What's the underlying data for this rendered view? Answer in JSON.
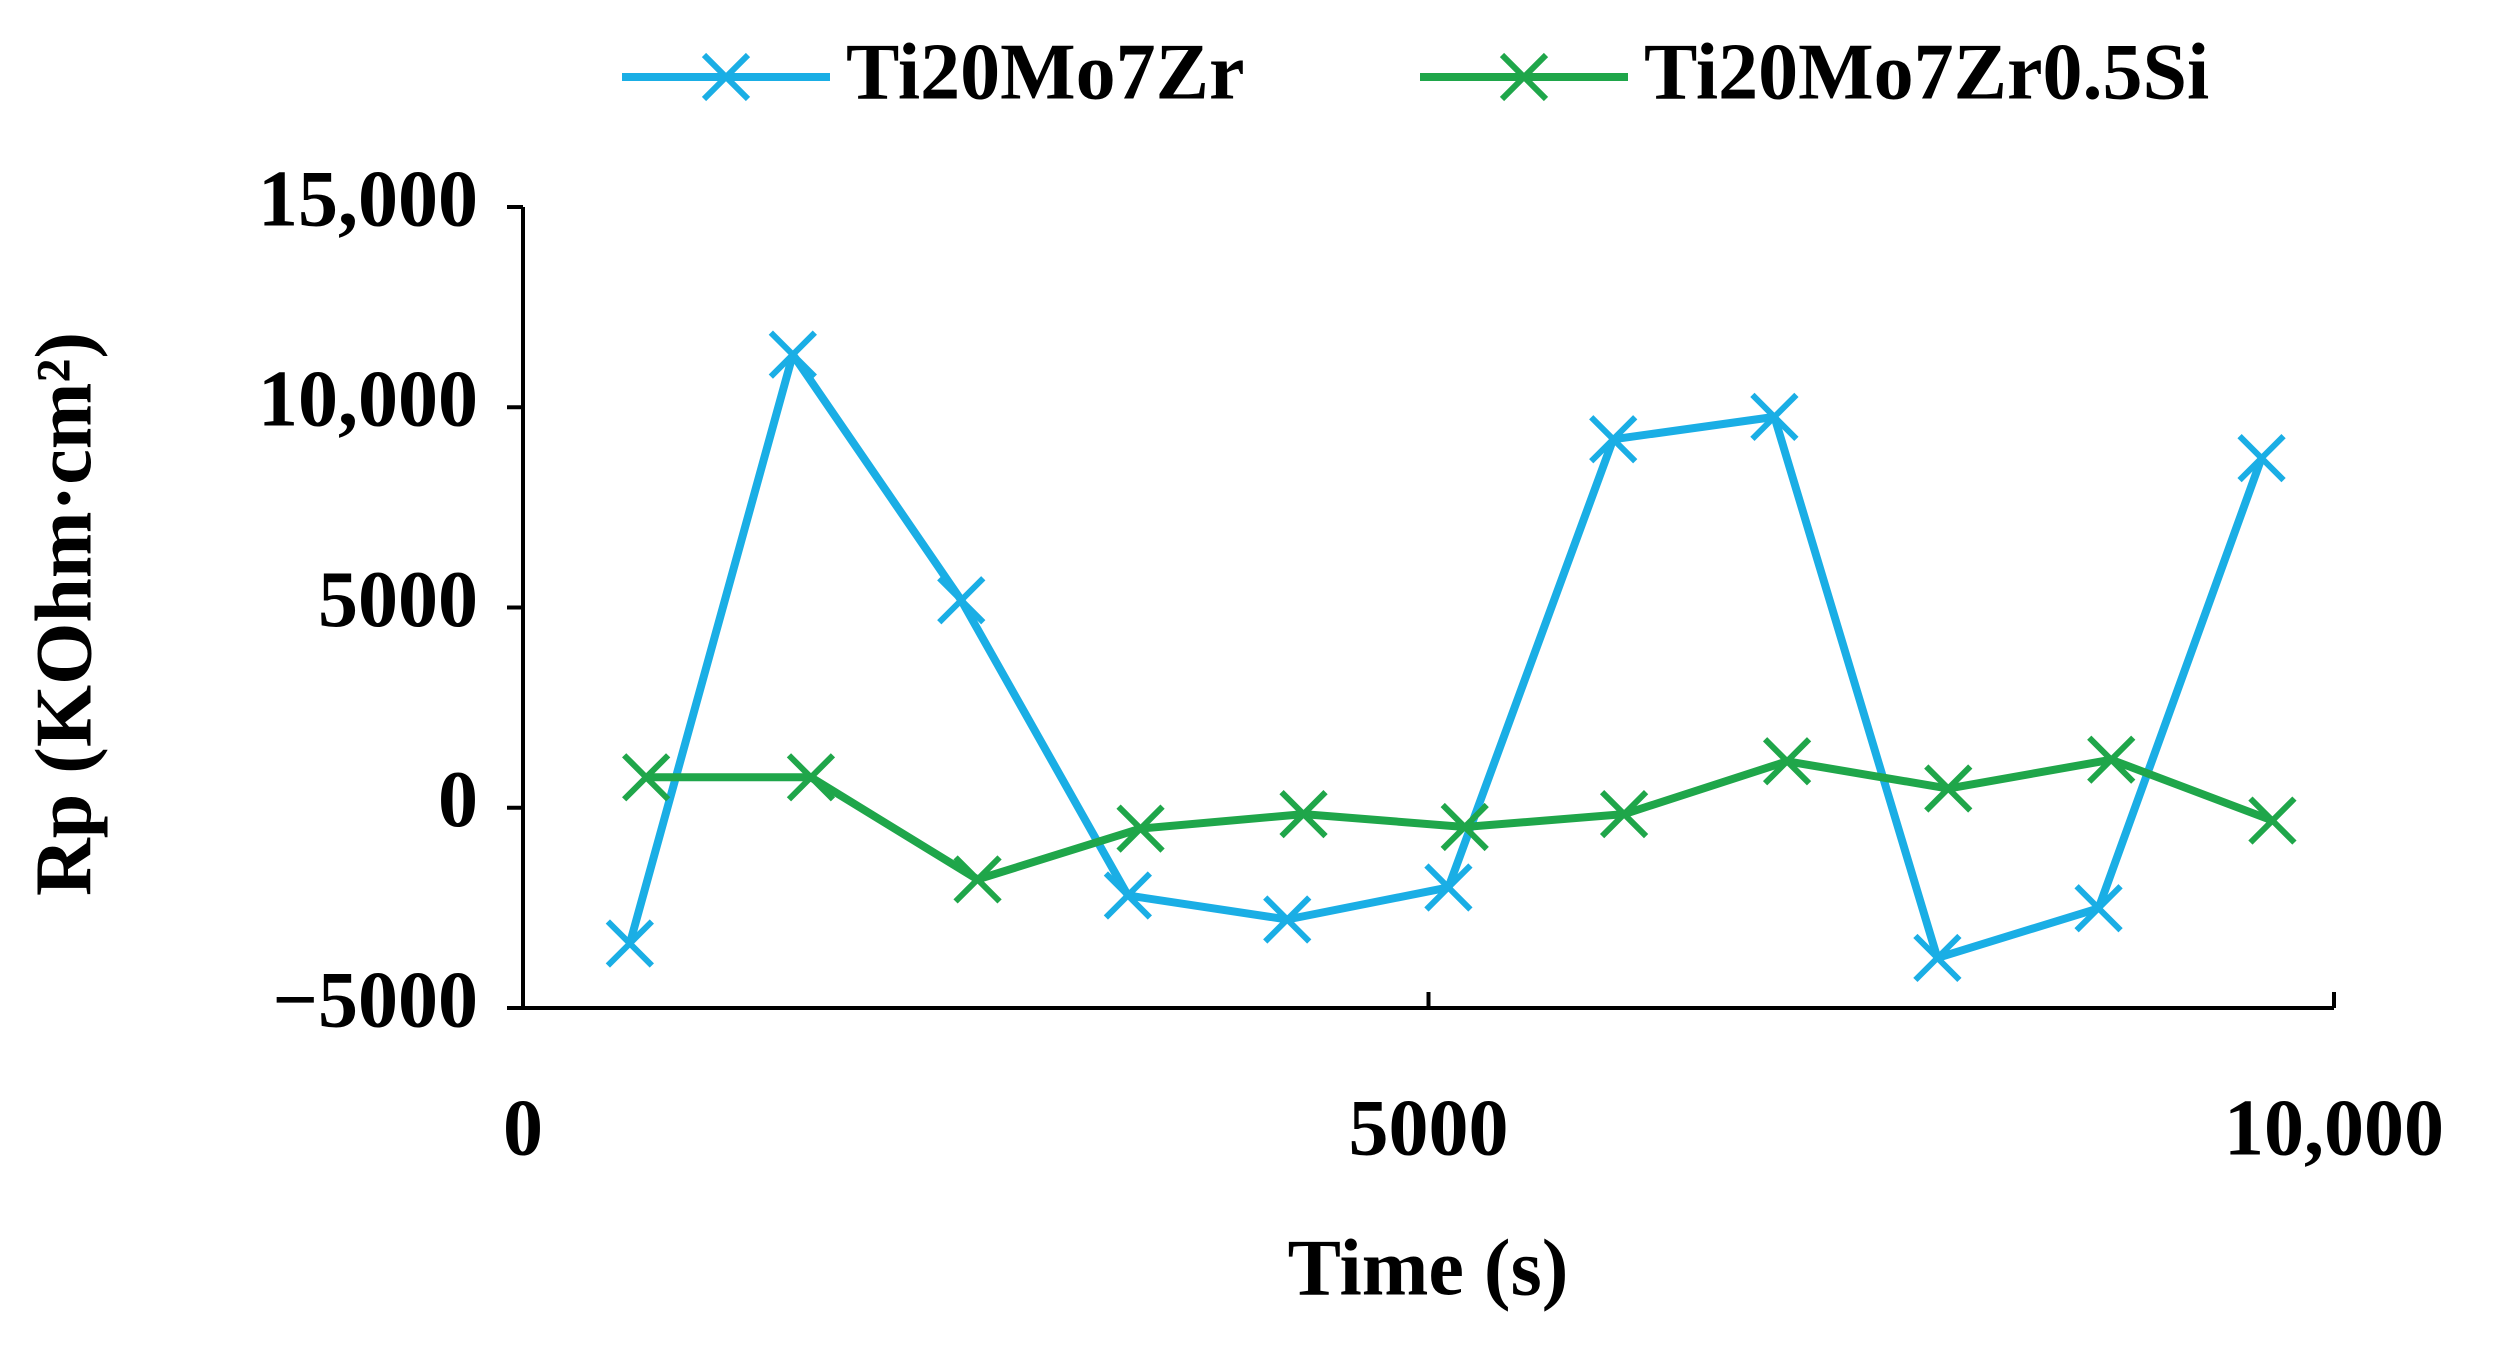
{
  "chart_data": {
    "type": "line",
    "x_label": "Time (s)",
    "y_label": "Rp (KOhm·cm²)",
    "series": [
      {
        "name": "Ti20Mo7Zr",
        "color": "#1aaee5",
        "x": [
          590,
          1490,
          2420,
          3340,
          4220,
          5110,
          6020,
          6910,
          7810,
          8700,
          9600
        ],
        "values": [
          -3390,
          11315,
          5180,
          -2190,
          -2790,
          -1990,
          9200,
          9760,
          -3750,
          -2510,
          8730
        ]
      },
      {
        "name": "Ti20Mo7Zr0.5Si",
        "color": "#1fa64a",
        "x": [
          680,
          1590,
          2510,
          3410,
          4310,
          5200,
          6080,
          6980,
          7870,
          8770,
          9660
        ],
        "values": [
          760,
          760,
          -1790,
          -520,
          -160,
          -480,
          -160,
          1160,
          480,
          1200,
          -320
        ]
      }
    ],
    "xlim": [
      0,
      10000
    ],
    "xticks": [
      0,
      5000,
      {
        "value": 10000,
        "label": "10,000"
      }
    ],
    "ylim": [
      -5000,
      15000
    ],
    "yticks": [
      {
        "value": -5000,
        "label": "−5000"
      },
      0,
      5000,
      {
        "value": 10000,
        "label": "10,000"
      },
      {
        "value": 15000,
        "label": "15,000"
      }
    ],
    "legend": "top",
    "grid": false
  }
}
